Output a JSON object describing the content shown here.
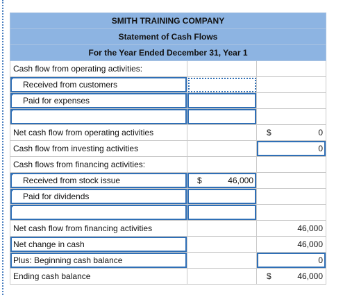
{
  "header": {
    "company": "SMITH TRAINING COMPANY",
    "statement": "Statement of Cash Flows",
    "period": "For the Year Ended December 31, Year 1"
  },
  "rows": {
    "operating_heading": "Cash flow from operating activities:",
    "received_customers": "Received from customers",
    "paid_expenses": "Paid for expenses",
    "net_operating": "Net cash flow from operating activities",
    "net_operating_dollar": "$",
    "net_operating_value": "0",
    "investing": "Cash flow from investing activities",
    "investing_value": "0",
    "financing_heading": "Cash flows from financing activities:",
    "stock_issue": "Received from stock issue",
    "stock_issue_dollar": "$",
    "stock_issue_value": "46,000",
    "paid_dividends": "Paid for dividends",
    "net_financing": "Net cash flow from financing activities",
    "net_financing_value": "46,000",
    "net_change": "Net change in cash",
    "net_change_value": "46,000",
    "beginning_balance": "Plus: Beginning cash balance",
    "beginning_balance_value": "0",
    "ending_balance": "Ending cash balance",
    "ending_balance_dollar": "$",
    "ending_balance_value": "46,000"
  }
}
